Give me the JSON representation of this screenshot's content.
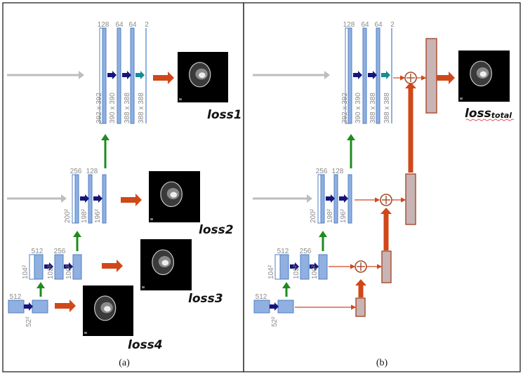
{
  "panels": [
    {
      "label": "(a)"
    },
    {
      "label": "(b)"
    }
  ],
  "levels": [
    {
      "channels": [
        "128",
        "64",
        "64",
        "2"
      ],
      "dims": [
        "392 x 392",
        "390 x 390",
        "388 x 388",
        "388 x 388"
      ]
    },
    {
      "channels": [
        "256",
        "128"
      ],
      "dims": [
        "200²",
        "198²",
        "196²"
      ]
    },
    {
      "channels": [
        "512",
        "256"
      ],
      "dims": [
        "104²",
        "102²",
        "100²"
      ]
    },
    {
      "channels": [
        "512"
      ],
      "dims": [
        "52²"
      ]
    }
  ],
  "losses_a": [
    "loss1",
    "loss2",
    "loss3",
    "loss4"
  ],
  "loss_b": {
    "main": "loss",
    "sub": "total"
  },
  "colors": {
    "block": "#8fb0e0",
    "block_stroke": "#4f7fc4",
    "arrow_gray": "#bdbdbd",
    "arrow_navy": "#15157a",
    "arrow_teal": "#1a8a96",
    "arrow_green": "#1e8c1e",
    "arrow_orange": "#d0481a",
    "fuse_box": "#c8b4b4",
    "fuse_stroke": "#a54a2a"
  }
}
